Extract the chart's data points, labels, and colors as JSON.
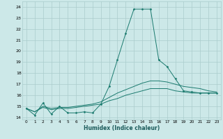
{
  "xlabel": "Humidex (Indice chaleur)",
  "bg_color": "#cce8e8",
  "grid_color": "#aacccc",
  "line_color": "#1a7a6e",
  "xlim": [
    -0.5,
    23.5
  ],
  "ylim": [
    13.8,
    24.5
  ],
  "yticks": [
    14,
    15,
    16,
    17,
    18,
    19,
    20,
    21,
    22,
    23,
    24
  ],
  "xticks": [
    0,
    1,
    2,
    3,
    4,
    5,
    6,
    7,
    8,
    9,
    10,
    11,
    12,
    13,
    14,
    15,
    16,
    17,
    18,
    19,
    20,
    21,
    22,
    23
  ],
  "series0": {
    "x": [
      0,
      1,
      2,
      3,
      4,
      5,
      6,
      7,
      8,
      9,
      10,
      11,
      12,
      13,
      14,
      15,
      16,
      17,
      18,
      19,
      20,
      21,
      22,
      23
    ],
    "y": [
      14.8,
      14.2,
      15.3,
      14.3,
      15.0,
      14.4,
      14.4,
      14.5,
      14.4,
      15.2,
      16.8,
      19.2,
      21.6,
      23.8,
      23.8,
      23.8,
      19.2,
      18.6,
      17.5,
      16.4,
      16.3,
      16.2,
      16.2,
      16.2
    ]
  },
  "series1": {
    "x": [
      0,
      1,
      2,
      3,
      4,
      5,
      6,
      7,
      8,
      9,
      10,
      11,
      12,
      13,
      14,
      15,
      16,
      17,
      18,
      19,
      20,
      21,
      22,
      23
    ],
    "y": [
      14.8,
      14.5,
      15.0,
      14.8,
      14.9,
      14.9,
      15.0,
      15.1,
      15.2,
      15.4,
      15.8,
      16.2,
      16.5,
      16.8,
      17.1,
      17.3,
      17.3,
      17.2,
      17.0,
      16.8,
      16.7,
      16.6,
      16.4,
      16.3
    ]
  },
  "series2": {
    "x": [
      0,
      1,
      2,
      3,
      4,
      5,
      6,
      7,
      8,
      9,
      10,
      11,
      12,
      13,
      14,
      15,
      16,
      17,
      18,
      19,
      20,
      21,
      22,
      23
    ],
    "y": [
      14.8,
      14.5,
      14.9,
      14.7,
      14.8,
      14.8,
      14.9,
      15.0,
      15.1,
      15.2,
      15.5,
      15.7,
      16.0,
      16.2,
      16.4,
      16.6,
      16.6,
      16.6,
      16.4,
      16.3,
      16.2,
      16.2,
      16.2,
      16.2
    ]
  }
}
